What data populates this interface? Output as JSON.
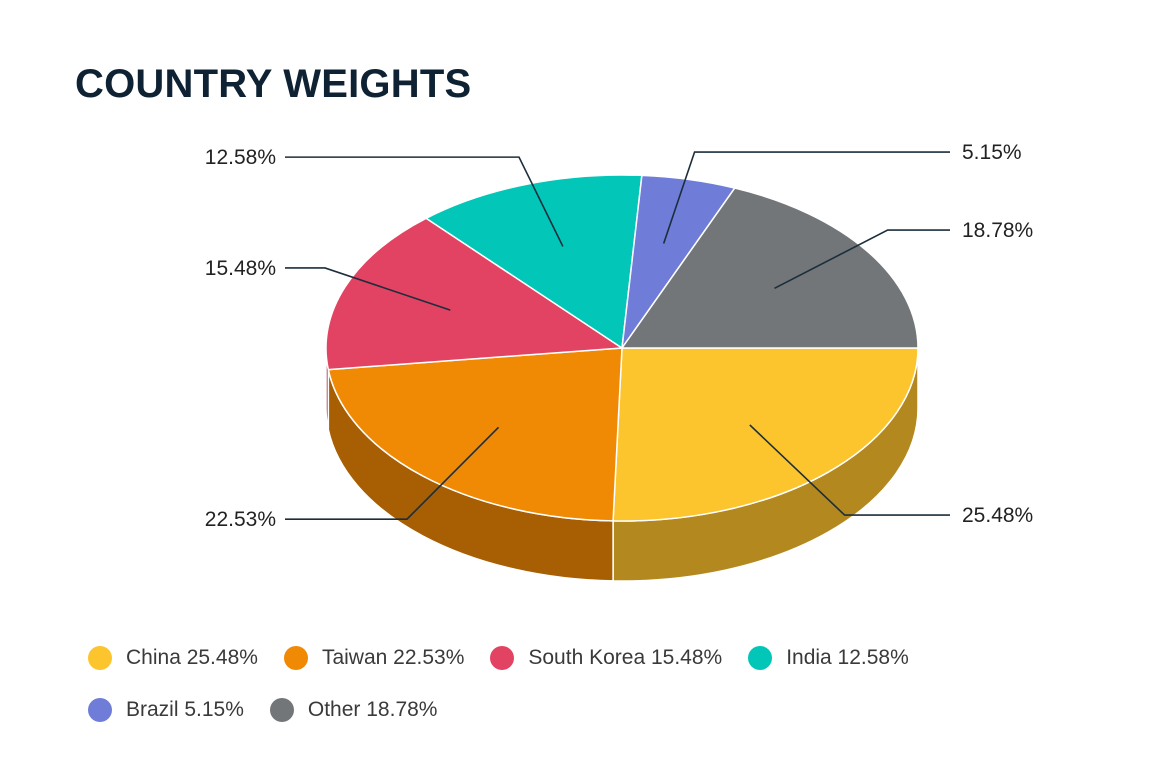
{
  "title": "COUNTRY WEIGHTS",
  "chart_data": {
    "type": "pie",
    "style": "3d",
    "title": "COUNTRY WEIGHTS",
    "legend_position": "bottom",
    "slices": [
      {
        "label": "China",
        "value": 25.48,
        "display": "25.48%",
        "legend": "China 25.48%",
        "color": "#FCC42D",
        "side_color": "#B3881F"
      },
      {
        "label": "Taiwan",
        "value": 22.53,
        "display": "22.53%",
        "legend": "Taiwan 22.53%",
        "color": "#F08A04",
        "side_color": "#A85E02"
      },
      {
        "label": "South Korea",
        "value": 15.48,
        "display": "15.48%",
        "legend": "South Korea 15.48%",
        "color": "#E34363",
        "side_color": "#A02F46"
      },
      {
        "label": "India",
        "value": 12.58,
        "display": "12.58%",
        "legend": "India 12.58%",
        "color": "#02C6B7",
        "side_color": "#018B80"
      },
      {
        "label": "Brazil",
        "value": 5.15,
        "display": "5.15%",
        "legend": "Brazil 5.15%",
        "color": "#6F7DD8",
        "side_color": "#4E5898"
      },
      {
        "label": "Other",
        "value": 18.78,
        "display": "18.78%",
        "legend": "Other 18.78%",
        "color": "#737678",
        "side_color": "#515354"
      }
    ]
  },
  "legend": {
    "rows": [
      [
        0,
        1,
        2,
        3
      ],
      [
        4,
        5
      ]
    ]
  }
}
